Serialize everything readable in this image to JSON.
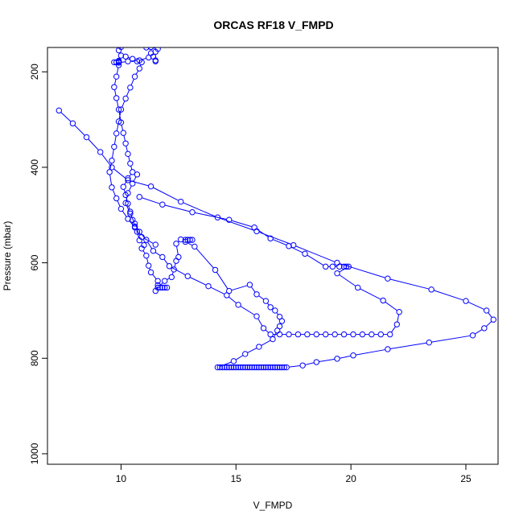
{
  "chart_data": {
    "type": "scatter",
    "title": "ORCAS RF18 V_FMPD",
    "xlabel": "V_FMPD",
    "ylabel": "Pressure (mbar)",
    "xlim": [
      6.8,
      26.4
    ],
    "ylim": [
      1022,
      149
    ],
    "y_reversed": true,
    "xticks": [
      10,
      15,
      20,
      25
    ],
    "yticks": [
      200,
      400,
      600,
      800,
      1000
    ],
    "grid": false,
    "legend": "none",
    "series_color": "#0000FF",
    "series": [
      {
        "marker": "open-circle",
        "line": true,
        "points": [
          [
            7.3,
            281
          ],
          [
            7.9,
            308
          ],
          [
            8.5,
            337
          ],
          [
            9.1,
            368
          ],
          [
            9.6,
            400
          ],
          [
            10.3,
            427
          ],
          [
            11.3,
            440
          ],
          [
            12.6,
            472
          ],
          [
            14.2,
            505
          ],
          [
            15.9,
            534
          ],
          [
            17.5,
            563
          ],
          [
            19.4,
            600
          ],
          [
            21.6,
            633
          ],
          [
            23.5,
            656
          ],
          [
            25.0,
            680
          ],
          [
            25.9,
            700
          ],
          [
            26.2,
            719
          ],
          [
            25.8,
            737
          ],
          [
            25.3,
            752
          ],
          [
            23.4,
            767
          ],
          [
            21.6,
            781
          ],
          [
            20.1,
            794
          ],
          [
            19.4,
            801
          ],
          [
            18.5,
            808
          ],
          [
            17.9,
            815
          ],
          [
            17.2,
            819
          ],
          [
            17.1,
            819
          ],
          [
            17.0,
            819
          ],
          [
            16.9,
            819
          ],
          [
            16.8,
            819
          ],
          [
            16.7,
            819
          ],
          [
            16.6,
            819
          ],
          [
            16.5,
            819
          ],
          [
            16.4,
            819
          ],
          [
            16.3,
            819
          ],
          [
            16.2,
            819
          ],
          [
            16.1,
            819
          ],
          [
            16.0,
            819
          ],
          [
            15.9,
            819
          ],
          [
            15.8,
            819
          ],
          [
            15.7,
            819
          ],
          [
            15.6,
            819
          ],
          [
            15.5,
            819
          ],
          [
            15.4,
            819
          ],
          [
            15.3,
            819
          ],
          [
            15.2,
            819
          ],
          [
            15.1,
            819
          ],
          [
            15.0,
            819
          ],
          [
            14.9,
            819
          ],
          [
            14.8,
            819
          ],
          [
            14.7,
            819
          ],
          [
            14.6,
            819
          ],
          [
            14.5,
            819
          ],
          [
            14.4,
            819
          ],
          [
            14.3,
            819
          ],
          [
            14.2,
            819
          ],
          [
            14.9,
            806
          ],
          [
            15.4,
            791
          ],
          [
            16.0,
            776
          ],
          [
            16.6,
            760
          ],
          [
            16.8,
            742
          ],
          [
            16.9,
            733
          ],
          [
            17.0,
            722
          ],
          [
            16.9,
            713
          ],
          [
            16.7,
            700
          ],
          [
            16.5,
            693
          ],
          [
            16.3,
            680
          ],
          [
            15.9,
            666
          ],
          [
            15.6,
            646
          ],
          [
            14.7,
            659
          ],
          [
            14.1,
            615
          ],
          [
            13.2,
            566
          ],
          [
            12.8,
            556
          ],
          [
            12.6,
            551
          ],
          [
            12.4,
            560
          ],
          [
            12.5,
            588
          ],
          [
            12.4,
            596
          ],
          [
            12.3,
            614
          ],
          [
            12.2,
            630
          ],
          [
            11.9,
            638
          ],
          [
            11.6,
            652
          ],
          [
            11.5,
            659
          ],
          [
            11.6,
            647
          ],
          [
            11.6,
            638
          ],
          [
            11.3,
            620
          ],
          [
            11.2,
            606
          ],
          [
            11.1,
            585
          ],
          [
            10.9,
            570
          ],
          [
            11.0,
            563
          ],
          [
            10.8,
            553
          ],
          [
            10.7,
            535
          ],
          [
            10.6,
            524
          ],
          [
            10.5,
            510
          ],
          [
            10.4,
            493
          ],
          [
            10.3,
            476
          ],
          [
            10.2,
            458
          ],
          [
            10.1,
            441
          ],
          [
            10.3,
            423
          ],
          [
            10.5,
            410
          ],
          [
            10.4,
            392
          ],
          [
            10.3,
            372
          ],
          [
            10.2,
            350
          ],
          [
            10.1,
            328
          ],
          [
            10.0,
            306
          ],
          [
            9.9,
            279
          ],
          [
            9.8,
            255
          ],
          [
            9.7,
            232
          ],
          [
            9.8,
            210
          ],
          [
            9.9,
            186
          ],
          [
            9.9,
            178
          ],
          [
            10.0,
            166
          ],
          [
            9.9,
            155
          ],
          [
            10.0,
            148
          ]
        ]
      },
      {
        "marker": "open-circle",
        "line": true,
        "points": [
          [
            9.8,
            180
          ],
          [
            9.9,
            181
          ],
          [
            10.3,
            178
          ],
          [
            10.8,
            176
          ],
          [
            11.2,
            170
          ],
          [
            11.4,
            168
          ],
          [
            11.3,
            161
          ],
          [
            11.5,
            158
          ],
          [
            11.6,
            152
          ],
          [
            11.3,
            148
          ]
        ]
      },
      {
        "marker": "open-circle",
        "line": true,
        "points": [
          [
            10.2,
            168
          ],
          [
            10.5,
            173
          ],
          [
            10.7,
            178
          ],
          [
            10.9,
            180
          ],
          [
            10.8,
            193
          ],
          [
            10.6,
            210
          ],
          [
            10.4,
            233
          ],
          [
            10.2,
            256
          ],
          [
            10.0,
            279
          ],
          [
            9.9,
            304
          ],
          [
            9.8,
            329
          ],
          [
            9.7,
            357
          ],
          [
            9.6,
            386
          ],
          [
            9.5,
            410
          ],
          [
            9.6,
            442
          ],
          [
            9.8,
            465
          ],
          [
            10.0,
            487
          ],
          [
            10.3,
            508
          ],
          [
            10.6,
            526
          ],
          [
            10.9,
            546
          ],
          [
            11.5,
            562
          ]
        ]
      },
      {
        "marker": "open-circle",
        "line": true,
        "points": [
          [
            10.8,
            462
          ],
          [
            11.8,
            478
          ],
          [
            13.1,
            494
          ],
          [
            14.7,
            510
          ],
          [
            15.8,
            526
          ],
          [
            16.5,
            549
          ],
          [
            17.3,
            565
          ],
          [
            18.0,
            581
          ],
          [
            18.9,
            608
          ],
          [
            19.2,
            608
          ],
          [
            19.5,
            608
          ],
          [
            19.7,
            608
          ],
          [
            19.8,
            608
          ],
          [
            19.9,
            608
          ],
          [
            19.4,
            622
          ],
          [
            20.3,
            652
          ],
          [
            21.4,
            679
          ],
          [
            22.1,
            703
          ],
          [
            22.0,
            729
          ],
          [
            21.7,
            750
          ],
          [
            21.3,
            750
          ],
          [
            20.9,
            750
          ],
          [
            20.5,
            750
          ],
          [
            20.1,
            750
          ],
          [
            19.7,
            750
          ],
          [
            19.3,
            750
          ],
          [
            18.9,
            750
          ],
          [
            18.5,
            750
          ],
          [
            18.1,
            750
          ],
          [
            17.7,
            750
          ],
          [
            17.3,
            750
          ],
          [
            16.9,
            750
          ],
          [
            16.5,
            750
          ],
          [
            16.2,
            737
          ],
          [
            15.9,
            712
          ],
          [
            15.1,
            688
          ],
          [
            14.6,
            668
          ],
          [
            13.8,
            649
          ],
          [
            12.9,
            628
          ],
          [
            12.1,
            607
          ],
          [
            11.8,
            588
          ],
          [
            11.4,
            575
          ],
          [
            11.1,
            552
          ],
          [
            10.8,
            535
          ],
          [
            10.6,
            518
          ],
          [
            10.4,
            497
          ],
          [
            10.2,
            475
          ],
          [
            10.3,
            454
          ],
          [
            10.5,
            434
          ],
          [
            10.7,
            415
          ]
        ]
      },
      {
        "marker": "open-circle",
        "line": false,
        "points": [
          [
            9.7,
            180
          ],
          [
            9.9,
            179
          ],
          [
            11.5,
            176
          ],
          [
            11.5,
            178
          ],
          [
            9.9,
            177
          ],
          [
            11.3,
            148
          ],
          [
            11.1,
            149
          ],
          [
            11.7,
            652
          ],
          [
            11.8,
            652
          ],
          [
            11.9,
            652
          ],
          [
            12.0,
            652
          ],
          [
            12.8,
            552
          ],
          [
            12.9,
            552
          ],
          [
            13.0,
            552
          ],
          [
            13.1,
            552
          ]
        ]
      }
    ]
  }
}
